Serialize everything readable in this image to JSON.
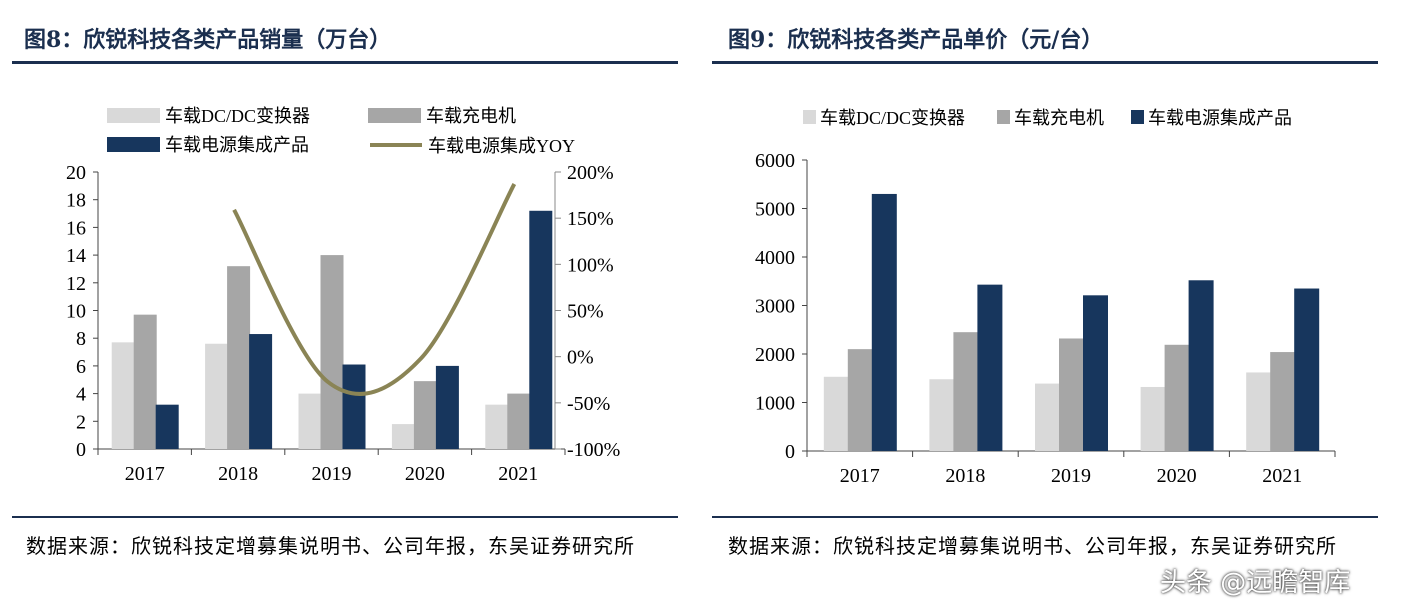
{
  "colors": {
    "dcdc": "#d9d9d9",
    "charger": "#a6a6a6",
    "integrated": "#17365d",
    "yoy": "#8a8455",
    "title": "#1b2f4f"
  },
  "chart_data": [
    {
      "type": "bar",
      "title": "图8：欣锐科技各类产品销量（万台）",
      "categories": [
        "2017",
        "2018",
        "2019",
        "2020",
        "2021"
      ],
      "ylim": [
        0,
        20
      ],
      "yticks": [
        "0",
        "2",
        "4",
        "6",
        "8",
        "10",
        "12",
        "14",
        "16",
        "18",
        "20"
      ],
      "y2lim": [
        -100,
        200
      ],
      "y2ticks": [
        "-100%",
        "-50%",
        "0%",
        "50%",
        "100%",
        "150%",
        "200%"
      ],
      "series": [
        {
          "name": "车载DC/DC变换器",
          "type": "bar",
          "values": [
            7.7,
            7.6,
            4.0,
            1.8,
            3.2
          ]
        },
        {
          "name": "车载充电机",
          "type": "bar",
          "values": [
            9.7,
            13.2,
            14.0,
            4.9,
            4.0
          ]
        },
        {
          "name": "车载电源集成产品",
          "type": "bar",
          "values": [
            3.2,
            8.3,
            6.1,
            6.0,
            17.2
          ]
        },
        {
          "name": "车载电源集成YOY",
          "type": "line",
          "axis": "right",
          "values": [
            null,
            159,
            -27,
            -2,
            187
          ]
        }
      ],
      "legend": "top",
      "grid": false,
      "source": "数据来源：欣锐科技定增募集说明书、公司年报，东吴证券研究所"
    },
    {
      "type": "bar",
      "title": "图9：欣锐科技各类产品单价（元/台）",
      "categories": [
        "2017",
        "2018",
        "2019",
        "2020",
        "2021"
      ],
      "ylim": [
        0,
        6000
      ],
      "yticks": [
        "0",
        "1000",
        "2000",
        "3000",
        "4000",
        "5000",
        "6000"
      ],
      "series": [
        {
          "name": "车载DC/DC变换器",
          "values": [
            1530,
            1480,
            1390,
            1320,
            1620
          ]
        },
        {
          "name": "车载充电机",
          "values": [
            2100,
            2450,
            2320,
            2190,
            2040
          ]
        },
        {
          "name": "车载电源集成产品",
          "values": [
            5300,
            3430,
            3210,
            3520,
            3350
          ]
        }
      ],
      "legend": "top",
      "grid": false,
      "source": "数据来源：欣锐科技定增募集说明书、公司年报，东吴证券研究所"
    }
  ],
  "watermark": "头条 @远瞻智库"
}
